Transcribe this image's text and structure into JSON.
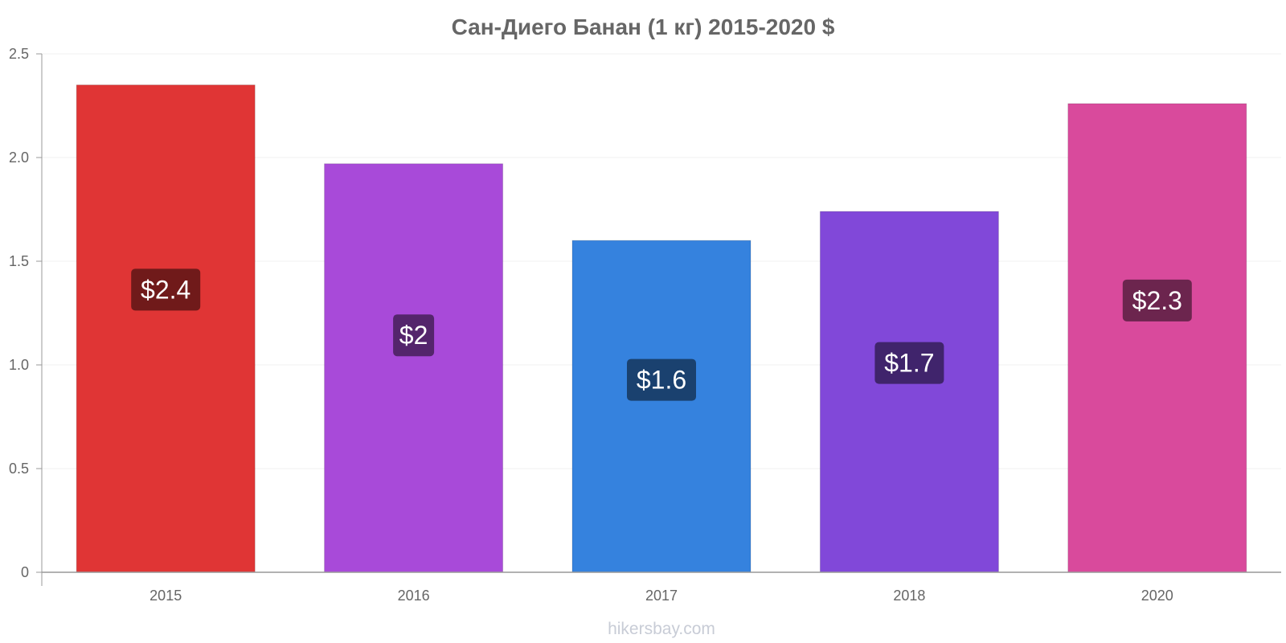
{
  "chart_data": {
    "type": "bar",
    "title": "Сан-Диего Банан (1 кг) 2015-2020 $",
    "xlabel": "",
    "ylabel": "",
    "categories": [
      "2015",
      "2016",
      "2017",
      "2018",
      "2020"
    ],
    "values": [
      2.35,
      1.97,
      1.6,
      1.74,
      2.26
    ],
    "data_labels": [
      "$2.4",
      "$2",
      "$1.6",
      "$1.7",
      "$2.3"
    ],
    "bar_colors": [
      "#e03535",
      "#a84ad9",
      "#3582de",
      "#8148d9",
      "#d94a9c"
    ],
    "label_bg_colors": [
      "#701a1a",
      "#54256c",
      "#1a416f",
      "#40246c",
      "#6c254e"
    ],
    "ylim": [
      0,
      2.5
    ],
    "yticks": [
      0,
      0.5,
      1.0,
      1.5,
      2.0,
      2.5
    ],
    "ytick_labels": [
      "0",
      "0.5",
      "1.0",
      "1.5",
      "2.0",
      "2.5"
    ],
    "grid": true,
    "legend": "none"
  },
  "watermark": "hikersbay.com",
  "colors": {
    "axis": "#999999",
    "grid": "#f0f0f0",
    "text": "#666666"
  }
}
